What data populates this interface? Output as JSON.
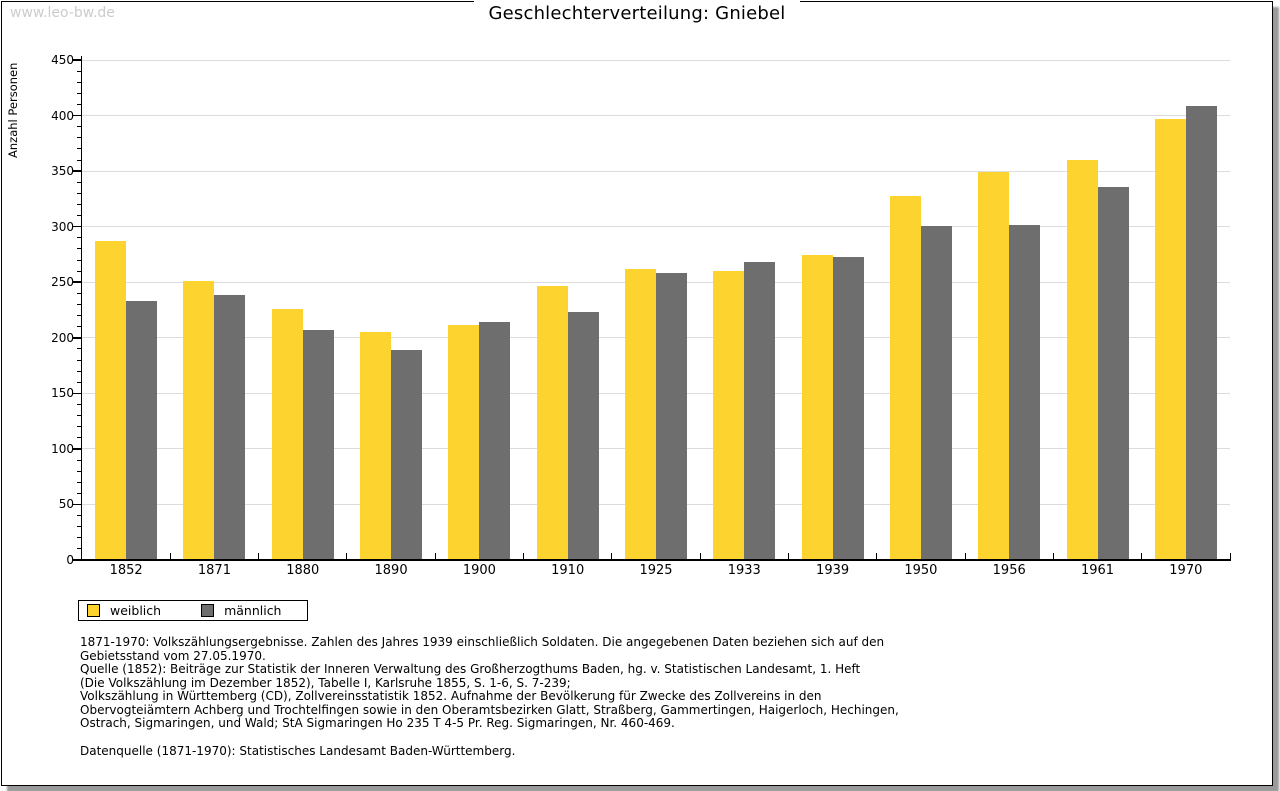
{
  "window": {
    "watermark": "www.leo-bw.de",
    "title": "Geschlechterverteilung: Gniebel"
  },
  "chart_data": {
    "type": "bar",
    "title": "Geschlechterverteilung: Gniebel",
    "ylabel": "Anzahl Personen",
    "xlabel": "",
    "ylim": [
      0,
      450
    ],
    "ytick_step": 50,
    "yticks": [
      0,
      50,
      100,
      150,
      200,
      250,
      300,
      350,
      400,
      450
    ],
    "grid": true,
    "legend_position": "bottom-left",
    "categories": [
      "1852",
      "1871",
      "1880",
      "1890",
      "1900",
      "1910",
      "1925",
      "1933",
      "1939",
      "1950",
      "1956",
      "1961",
      "1970"
    ],
    "series": [
      {
        "name": "weiblich",
        "color": "#FDD330",
        "values": [
          286,
          250,
          225,
          204,
          211,
          246,
          261,
          259,
          274,
          327,
          348,
          359,
          396
        ]
      },
      {
        "name": "männlich",
        "color": "#6E6E6E",
        "values": [
          232,
          238,
          206,
          188,
          213,
          222,
          257,
          267,
          272,
          300,
          301,
          335,
          408
        ]
      }
    ]
  },
  "colors": {
    "weiblich": "#FDD330",
    "männlich": "#6E6E6E",
    "gridline": "#DCDCDC",
    "watermark": "#CCCCCC"
  },
  "footnotes": {
    "lines": [
      "1871-1970: Volkszählungsergebnisse. Zahlen des Jahres 1939 einschließlich Soldaten. Die angegebenen Daten beziehen sich auf den",
      "Gebietsstand vom 27.05.1970.",
      "Quelle (1852): Beiträge zur Statistik der Inneren Verwaltung des Großherzogthums Baden, hg. v. Statistischen Landesamt, 1. Heft",
      "(Die Volkszählung im Dezember 1852), Tabelle I, Karlsruhe 1855, S. 1-6, S. 7-239;",
      "Volkszählung in Württemberg (CD), Zollvereinsstatistik 1852. Aufnahme der Bevölkerung für Zwecke des Zollvereins in den",
      "Obervogteiämtern Achberg und Trochtelfingen sowie in den Oberamtsbezirken Glatt, Straßberg, Gammertingen, Haigerloch, Hechingen,",
      "Ostrach, Sigmaringen, und Wald; StA Sigmaringen Ho 235 T 4-5 Pr. Reg. Sigmaringen, Nr. 460-469."
    ],
    "datasource": "Datenquelle (1871-1970): Statistisches Landesamt Baden-Württemberg."
  }
}
